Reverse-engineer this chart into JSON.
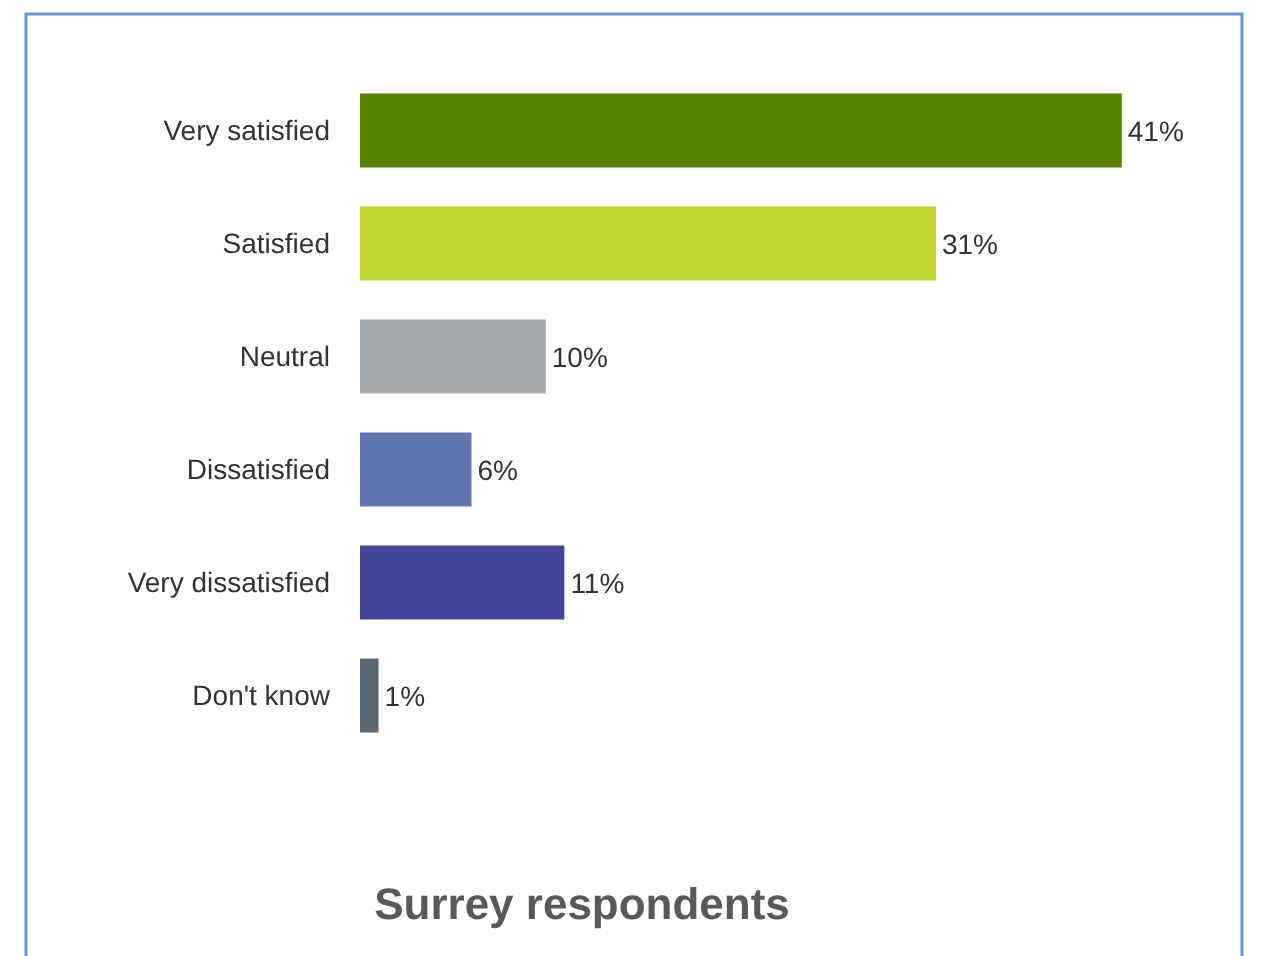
{
  "chart_data": {
    "type": "bar",
    "orientation": "horizontal",
    "title": "Surrey respondents",
    "categories": [
      "Very satisfied",
      "Satisfied",
      "Neutral",
      "Dissatisfied",
      "Very dissatisfied",
      "Don't know"
    ],
    "values": [
      41,
      31,
      10,
      6,
      11,
      1
    ],
    "colors": [
      "#548200",
      "#c1d72f",
      "#a5a9ab",
      "#6074b0",
      "#444797",
      "#5b6770"
    ],
    "value_labels": [
      "41%",
      "31%",
      "10%",
      "6%",
      "11%",
      "1%"
    ]
  }
}
